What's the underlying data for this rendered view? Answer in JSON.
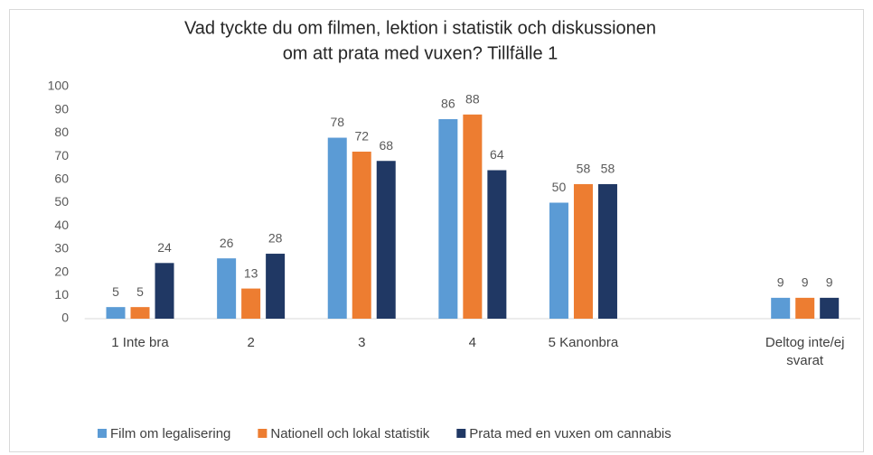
{
  "chart_data": {
    "type": "bar",
    "title": [
      "Vad tyckte du om filmen, lektion i statistik och diskussionen",
      "om att prata med vuxen? Tillfälle 1"
    ],
    "categories": [
      "1 Inte bra",
      "2",
      "3",
      "4",
      "5 Kanonbra",
      null,
      "Deltog inte/ej svarat"
    ],
    "series": [
      {
        "name": "Film om legalisering",
        "color": "#5b9bd5",
        "values": [
          5,
          26,
          78,
          86,
          50,
          null,
          9
        ]
      },
      {
        "name": "Nationell och lokal statistik",
        "color": "#ed7d31",
        "values": [
          5,
          13,
          72,
          88,
          58,
          null,
          9
        ]
      },
      {
        "name": "Prata med en vuxen om cannabis",
        "color": "#203864",
        "values": [
          24,
          28,
          68,
          64,
          58,
          null,
          9
        ]
      }
    ],
    "ylim": [
      0,
      100
    ],
    "yticks": [
      0,
      10,
      20,
      30,
      40,
      50,
      60,
      70,
      80,
      90,
      100
    ],
    "grid": false,
    "legend": "bottom"
  }
}
